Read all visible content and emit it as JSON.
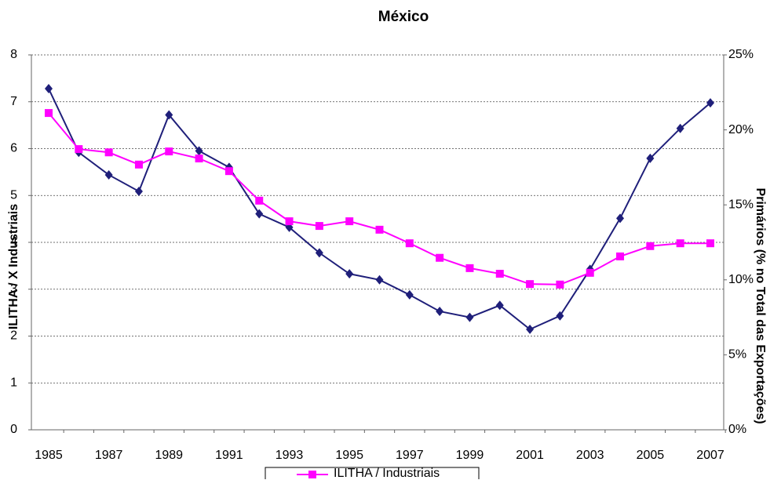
{
  "chart_data": {
    "type": "line",
    "title": "México",
    "y_label": "ILITHA / X Industriais",
    "y2_label": "Primários (% no Total das Exportações)",
    "categories": [
      "1985",
      null,
      "1987",
      null,
      "1989",
      null,
      "1991",
      null,
      "1993",
      null,
      "1995",
      null,
      "1997",
      null,
      "1999",
      null,
      "2001",
      null,
      "2003",
      null,
      "2005",
      null,
      "2007"
    ],
    "series": [
      {
        "name": "ILITHA / Industriais",
        "color": "#ff00ff",
        "marker": "square",
        "values": [
          6.76,
          5.99,
          5.92,
          5.66,
          5.94,
          5.79,
          5.52,
          4.89,
          4.45,
          4.35,
          4.45,
          4.27,
          3.98,
          3.67,
          3.45,
          3.33,
          3.11,
          3.1,
          3.35,
          3.7,
          3.92,
          3.98,
          3.98
        ]
      },
      {
        "color": "#1f1f7a",
        "marker": "diamond",
        "axis": "y2",
        "values": [
          22.75,
          18.5,
          17.0,
          15.9,
          21.0,
          18.6,
          17.5,
          14.4,
          13.5,
          11.8,
          10.4,
          10.0,
          9.0,
          7.9,
          7.5,
          8.3,
          6.7,
          7.6,
          10.7,
          14.1,
          18.1,
          20.1,
          21.8
        ]
      }
    ],
    "ylim": [
      0,
      8
    ],
    "yticks": [
      0,
      1,
      2,
      3,
      4,
      5,
      6,
      7,
      8
    ],
    "y2lim": [
      0,
      25
    ],
    "y2ticks": [
      {
        "value": 0,
        "label": "0%"
      },
      {
        "value": 5,
        "label": "5%"
      },
      {
        "value": 10,
        "label": "10%"
      },
      {
        "value": 15,
        "label": "15%"
      },
      {
        "value": 20,
        "label": "20%"
      },
      {
        "value": 25,
        "label": "25%"
      }
    ],
    "grid": true
  }
}
